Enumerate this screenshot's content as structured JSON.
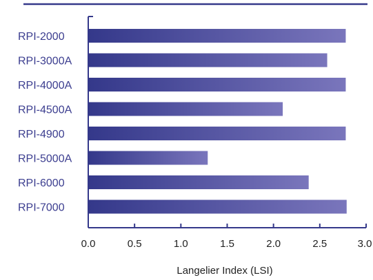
{
  "chart_data": {
    "type": "bar",
    "orientation": "horizontal",
    "categories": [
      "RPI-2000",
      "RPI-3000A",
      "RPI-4000A",
      "RPI-4500A",
      "RPI-4900",
      "RPI-5000A",
      "RPI-6000",
      "RPI-7000"
    ],
    "values": [
      2.78,
      2.58,
      2.78,
      2.1,
      2.78,
      1.29,
      2.38,
      2.79
    ],
    "xlabel": "Langelier Index (LSI)",
    "ylabel": "",
    "xlim": [
      0,
      3.0
    ],
    "xticks": [
      "0.0",
      "0.5",
      "1.0",
      "1.5",
      "2.0",
      "2.5",
      "3.0"
    ],
    "grid": false,
    "colors": {
      "bar_start": "#34388a",
      "bar_end": "#7a76bc",
      "axis": "#34388a",
      "category_text": "#3b3d8f",
      "top_rule": "#34388a"
    }
  }
}
